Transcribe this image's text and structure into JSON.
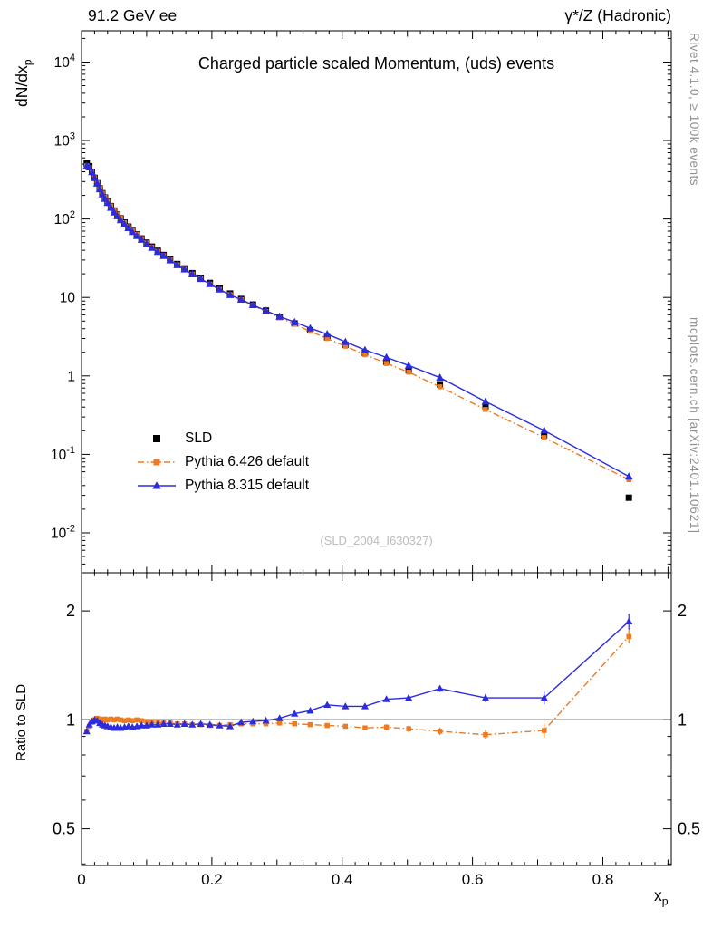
{
  "header": {
    "left": "91.2 GeV ee",
    "right": "γ*/Z (Hadronic)"
  },
  "side_notes": {
    "top_right": "Rivet 4.1.0, ≥ 100k events",
    "bottom_right": "mcplots.cern.ch [arXiv:2401.10621]"
  },
  "watermark": "(SLD_2004_I630327)",
  "labels": {
    "ylabel_base": "dN/dx",
    "ylabel_sub": "p",
    "xlabel_base": "x",
    "xlabel_sub": "p",
    "ratio_label": "Ratio to SLD"
  },
  "chart_data": {
    "type": "line",
    "title": "Charged particle scaled Momentum, (uds) events",
    "xlabel": "x_p",
    "ylabel": "dN/dx_p",
    "ratio_ylabel": "Ratio to SLD",
    "x_range": [
      0,
      0.905
    ],
    "y_range_main": [
      0.0031,
      25000
    ],
    "y_range_ratio": [
      0.396,
      2.55
    ],
    "x_ticks_labeled": [
      0,
      0.2,
      0.4,
      0.6,
      0.8
    ],
    "y_ticks_main_decades": [
      -2,
      -1,
      0,
      1,
      2,
      3,
      4
    ],
    "ratio_y_ticks_major": [
      0.5,
      1,
      2
    ],
    "ratio_y_ticks_minor": [
      0.4,
      0.6,
      0.7,
      0.8,
      0.9
    ],
    "grid": false,
    "legend_position": "inside-left-bottom",
    "x": [
      0.008,
      0.012,
      0.016,
      0.02,
      0.024,
      0.028,
      0.032,
      0.036,
      0.04,
      0.045,
      0.05,
      0.055,
      0.06,
      0.066,
      0.072,
      0.078,
      0.085,
      0.092,
      0.1,
      0.108,
      0.117,
      0.126,
      0.136,
      0.147,
      0.158,
      0.17,
      0.183,
      0.197,
      0.212,
      0.228,
      0.245,
      0.263,
      0.283,
      0.304,
      0.327,
      0.351,
      0.377,
      0.405,
      0.435,
      0.468,
      0.502,
      0.55,
      0.62,
      0.71,
      0.84
    ],
    "series": [
      {
        "name": "SLD",
        "role": "data",
        "color": "#000000",
        "marker": "square",
        "values": [
          510,
          470,
          400,
          335,
          285,
          245,
          213,
          188,
          167,
          146,
          128,
          114,
          102,
          90,
          80,
          72,
          63.5,
          56.5,
          50,
          44.5,
          39.3,
          34.8,
          30.6,
          26.7,
          23.4,
          20.4,
          17.7,
          15.3,
          13.1,
          11.2,
          9.55,
          8.1,
          6.8,
          5.65,
          4.66,
          3.82,
          3.1,
          2.49,
          1.96,
          1.51,
          1.18,
          0.78,
          0.41,
          0.175,
          0.028
        ]
      },
      {
        "name": "Pythia 6.426 default",
        "role": "mc",
        "color": "#ee7a21",
        "marker": "square",
        "line": "dash-dot",
        "ratio_to_sld": [
          0.93,
          0.96,
          0.985,
          1.0,
          1.01,
          1.005,
          1.0,
          1.005,
          1.0,
          1.005,
          1.0,
          1.005,
          1.0,
          0.995,
          1.0,
          0.995,
          1.0,
          0.995,
          0.99,
          0.985,
          0.985,
          0.98,
          0.98,
          0.975,
          0.975,
          0.97,
          0.97,
          0.965,
          0.965,
          0.97,
          0.975,
          0.975,
          0.975,
          0.98,
          0.975,
          0.97,
          0.965,
          0.96,
          0.95,
          0.955,
          0.945,
          0.93,
          0.91,
          0.935,
          1.7
        ]
      },
      {
        "name": "Pythia 8.315 default",
        "role": "mc",
        "color": "#2c2cdc",
        "marker": "triangle-up",
        "line": "solid",
        "ratio_to_sld": [
          0.93,
          0.97,
          0.99,
          1.0,
          0.995,
          0.98,
          0.97,
          0.965,
          0.96,
          0.955,
          0.95,
          0.955,
          0.95,
          0.955,
          0.96,
          0.955,
          0.96,
          0.965,
          0.965,
          0.97,
          0.97,
          0.975,
          0.975,
          0.97,
          0.975,
          0.97,
          0.975,
          0.97,
          0.965,
          0.96,
          0.985,
          0.99,
          0.995,
          1.01,
          1.04,
          1.06,
          1.1,
          1.09,
          1.09,
          1.14,
          1.15,
          1.22,
          1.15,
          1.15,
          1.87
        ]
      }
    ],
    "ratio_err": {
      "pythia6": [
        0.012,
        0.008,
        0.007,
        0.006,
        0.005,
        0.005,
        0.005,
        0.005,
        0.005,
        0.005,
        0.005,
        0.005,
        0.005,
        0.005,
        0.005,
        0.005,
        0.005,
        0.005,
        0.005,
        0.005,
        0.005,
        0.005,
        0.005,
        0.006,
        0.006,
        0.006,
        0.006,
        0.007,
        0.007,
        0.007,
        0.008,
        0.008,
        0.009,
        0.009,
        0.01,
        0.011,
        0.012,
        0.013,
        0.015,
        0.017,
        0.019,
        0.022,
        0.028,
        0.042,
        0.075
      ],
      "pythia8": [
        0.012,
        0.008,
        0.007,
        0.006,
        0.005,
        0.005,
        0.005,
        0.005,
        0.005,
        0.005,
        0.005,
        0.005,
        0.005,
        0.005,
        0.005,
        0.005,
        0.005,
        0.005,
        0.005,
        0.005,
        0.005,
        0.005,
        0.005,
        0.006,
        0.006,
        0.006,
        0.006,
        0.007,
        0.007,
        0.007,
        0.008,
        0.008,
        0.009,
        0.009,
        0.01,
        0.011,
        0.013,
        0.014,
        0.015,
        0.017,
        0.02,
        0.024,
        0.03,
        0.047,
        0.095
      ]
    }
  }
}
